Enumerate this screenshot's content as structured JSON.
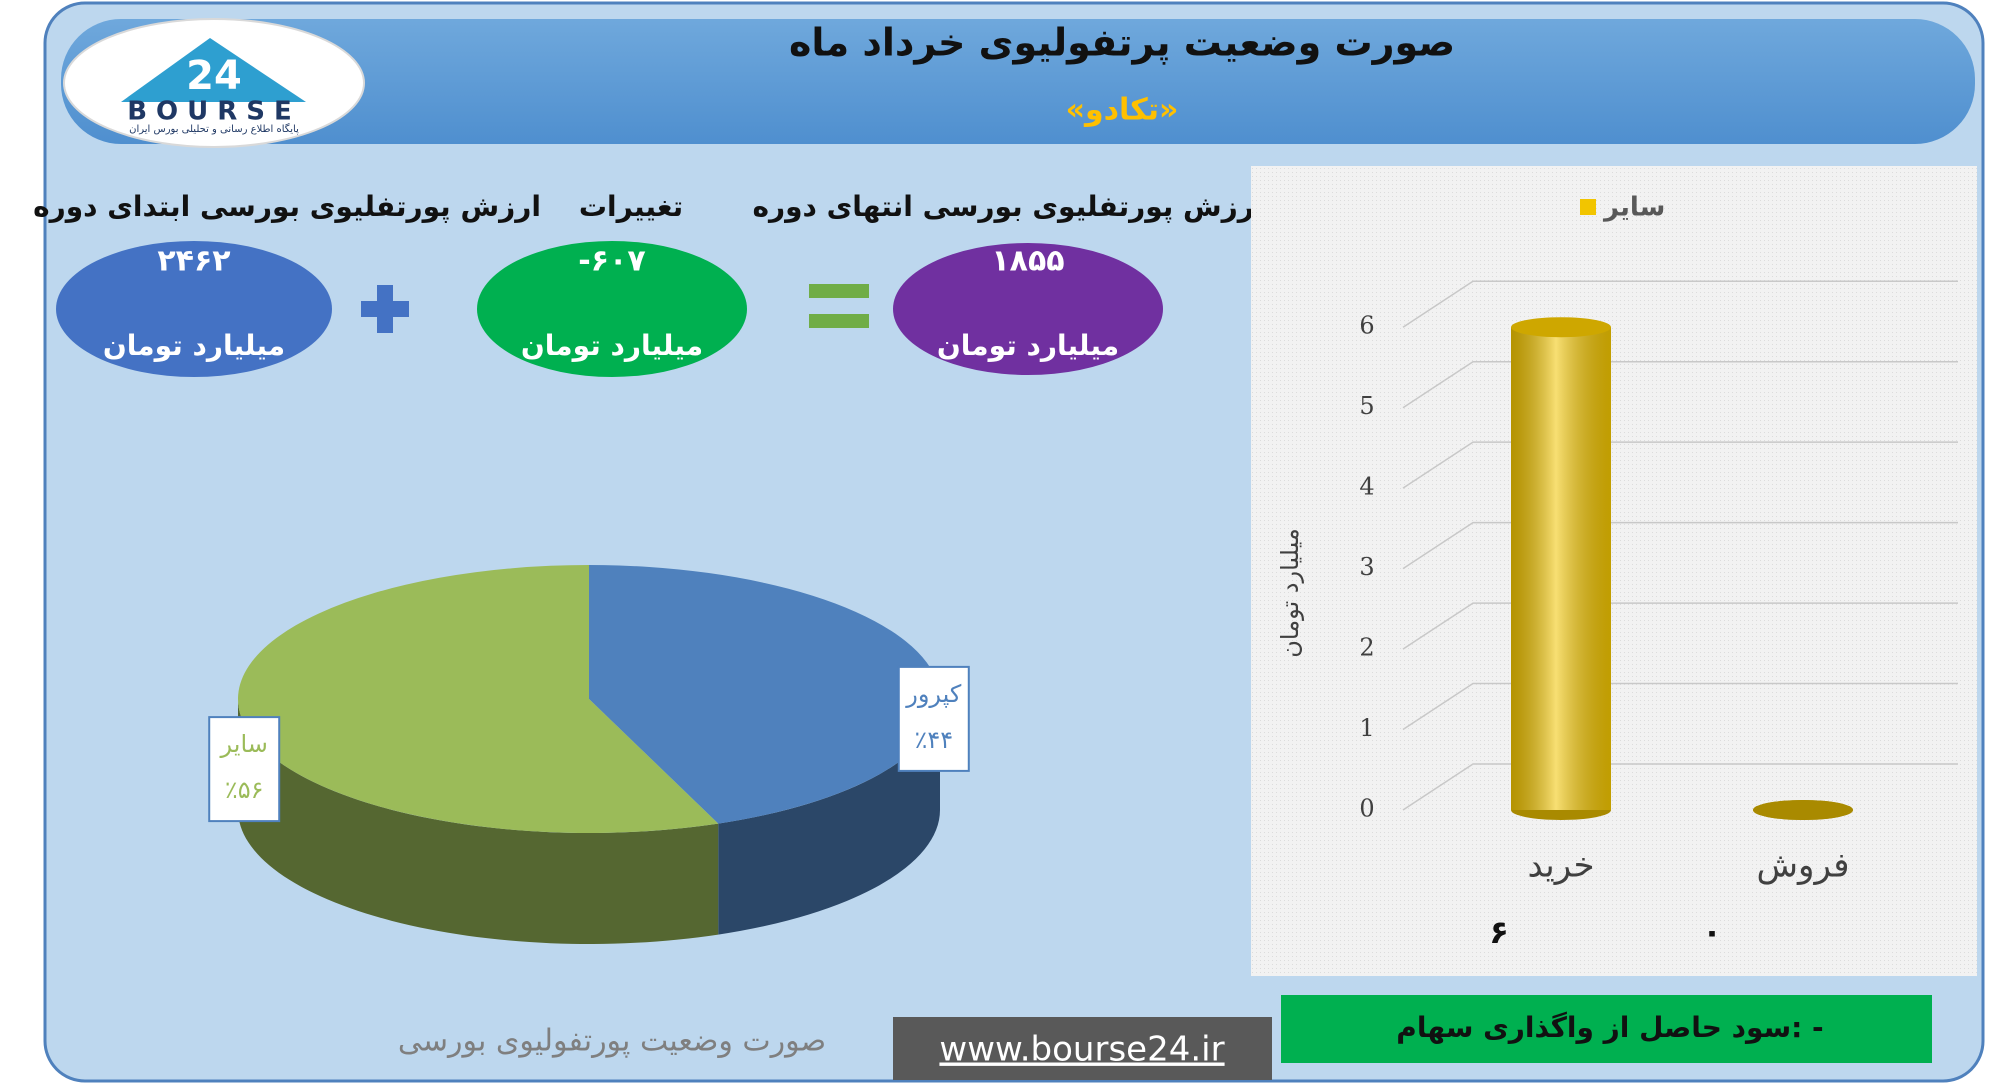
{
  "header": {
    "title": "صورت وضعیت پرتفولیوی خرداد ماه",
    "subtitle": "«تکادو»"
  },
  "logo": {
    "number": "24",
    "brand": "BOURSE",
    "tagline": "پایگاه اطلاع رسانی و تحلیلی بورس ایران"
  },
  "summary": {
    "items": [
      {
        "label": "ارزش پورتفلیوی بورسی ابتدای دوره",
        "value": "۲۴۶۲",
        "unit": "میلیارد تومان"
      },
      {
        "label": "تغییرات",
        "value": "-۶۰۷",
        "unit": "میلیارد تومان"
      },
      {
        "label": "ارزش پورتفلیوی بورسی انتهای دوره",
        "value": "۱۸۵۵",
        "unit": "میلیارد تومان"
      }
    ]
  },
  "chart_data": [
    {
      "type": "pie",
      "categories": [
        "کپرور",
        "سایر"
      ],
      "values": [
        44,
        56
      ],
      "value_labels": [
        "٪۴۴",
        "٪۵۶"
      ],
      "colors": [
        "#4f81bd",
        "#9bbb59"
      ]
    },
    {
      "type": "bar",
      "y_label": "میلیارد تومان",
      "categories": [
        "خرید",
        "فروش"
      ],
      "series": [
        {
          "name": "سایر",
          "color": "#f2c500",
          "values": [
            6,
            0
          ],
          "value_labels": [
            "۶",
            "۰"
          ]
        }
      ],
      "ylim": [
        0,
        6.5
      ],
      "yticks": [
        0,
        1,
        2,
        3,
        4,
        5,
        6
      ],
      "grid": true,
      "legend": "top"
    }
  ],
  "footer": {
    "gain": "سود حاصل از واگذاری سهام: -",
    "caption": "صورت وضعیت پورتفولیوی بورسی",
    "url": "www.bourse24.ir"
  }
}
